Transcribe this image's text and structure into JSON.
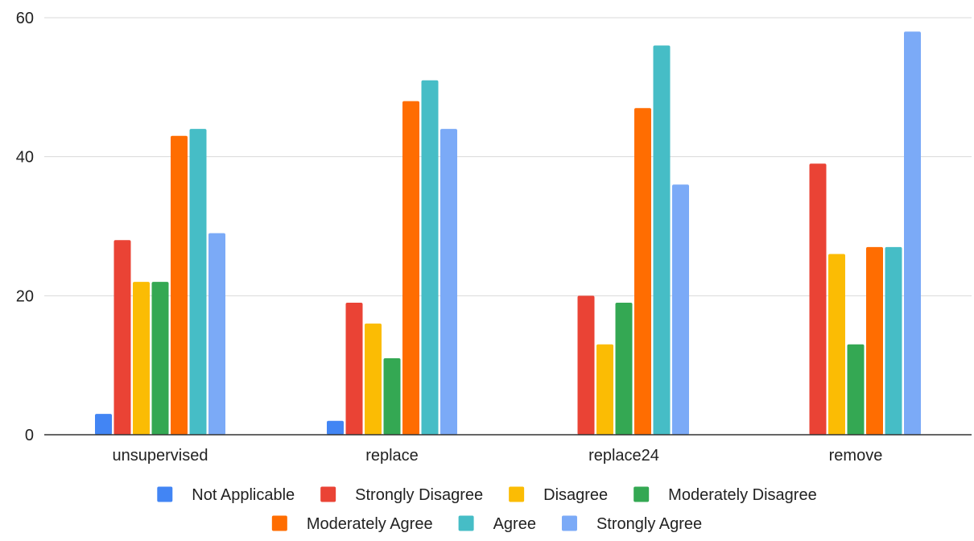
{
  "chart_data": {
    "type": "bar",
    "categories": [
      "unsupervised",
      "replace",
      "replace24",
      "remove"
    ],
    "series": [
      {
        "name": "Not Applicable",
        "color": "#4285F4",
        "values": [
          3,
          2,
          0,
          0
        ]
      },
      {
        "name": "Strongly Disagree",
        "color": "#EA4335",
        "values": [
          28,
          19,
          20,
          39
        ]
      },
      {
        "name": "Disagree",
        "color": "#FBBC04",
        "values": [
          22,
          16,
          13,
          26
        ]
      },
      {
        "name": "Moderately Disagree",
        "color": "#34A853",
        "values": [
          22,
          11,
          19,
          13
        ]
      },
      {
        "name": "Moderately Agree",
        "color": "#FF6D01",
        "values": [
          43,
          48,
          47,
          27
        ]
      },
      {
        "name": "Agree",
        "color": "#46BDC6",
        "values": [
          44,
          51,
          56,
          27
        ]
      },
      {
        "name": "Strongly Agree",
        "color": "#7BAAF7",
        "values": [
          29,
          44,
          36,
          58
        ]
      }
    ],
    "ylim": [
      0,
      60
    ],
    "yticks": [
      0,
      20,
      40,
      60
    ],
    "grid": true,
    "legend_position": "bottom",
    "title": "",
    "xlabel": "",
    "ylabel": ""
  }
}
